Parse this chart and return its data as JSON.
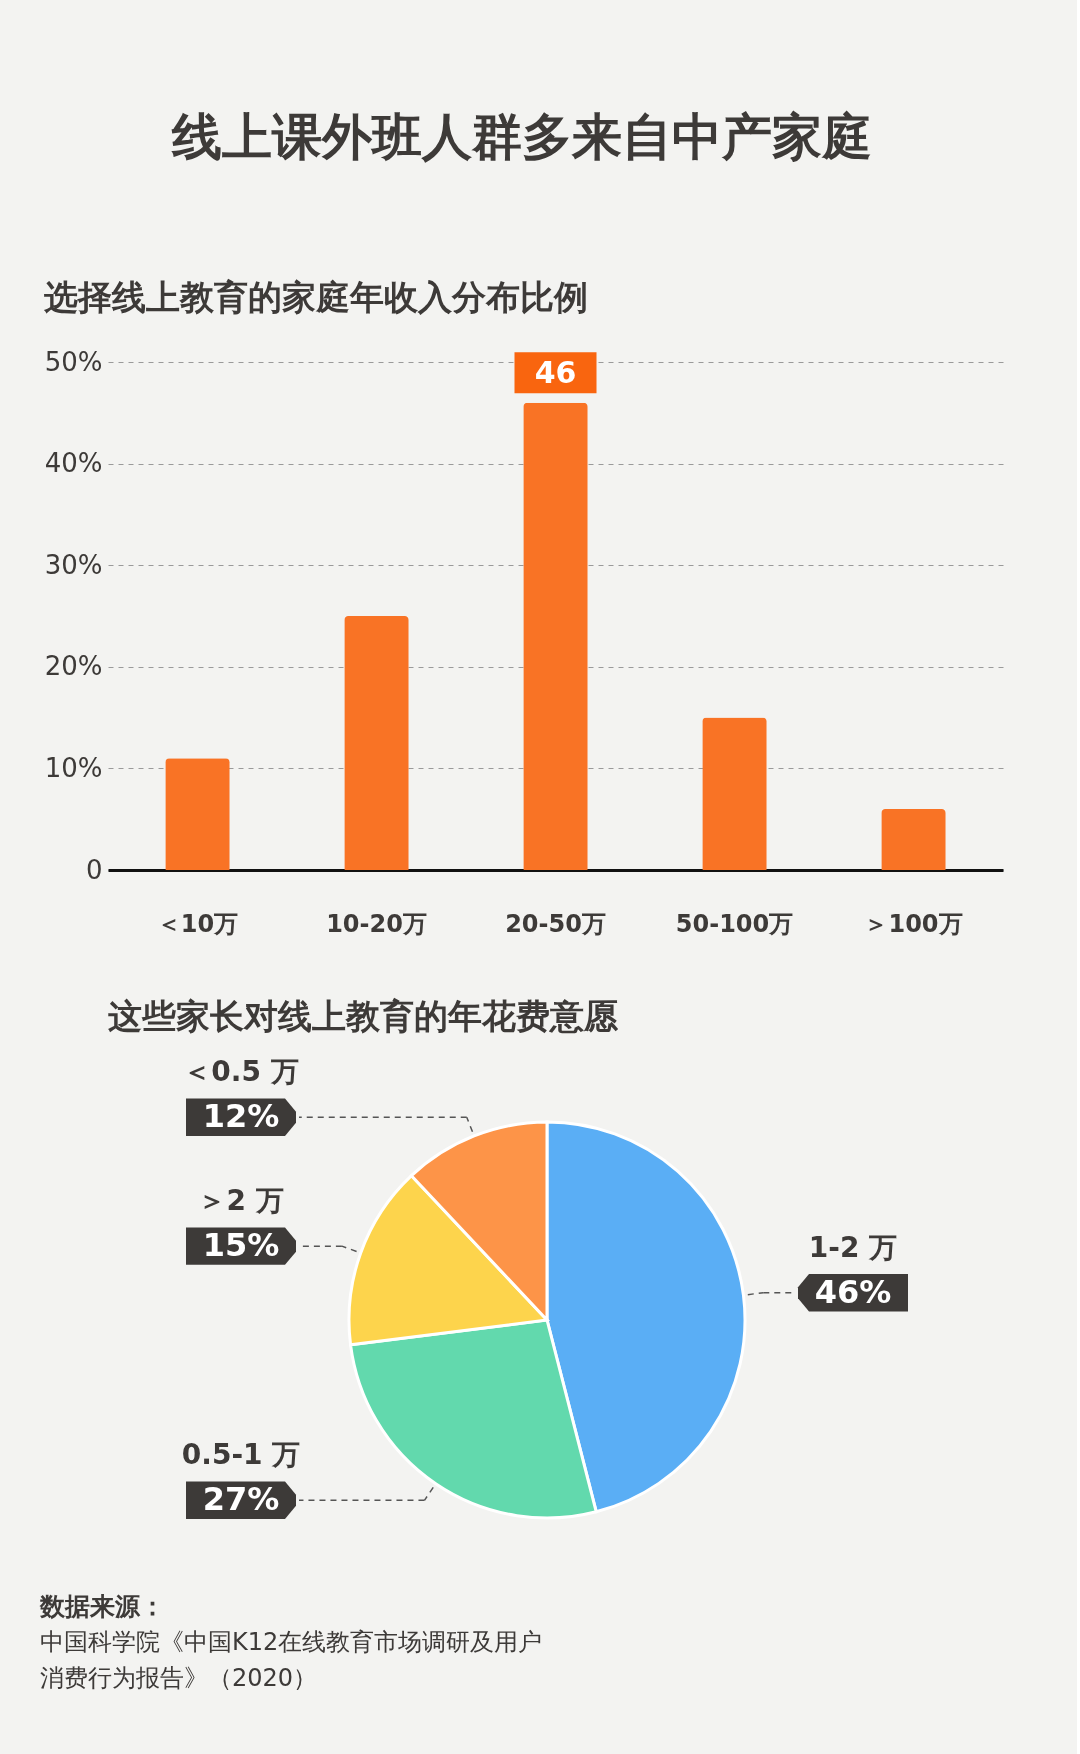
{
  "chart_data": [
    {
      "type": "bar",
      "title": "线上课外班人群多来自中产家庭",
      "subtitle": "选择线上教育的家庭年收入分布比例",
      "categories": [
        "＜10万",
        "10-20万",
        "20-50万",
        "50-100万",
        "＞100万"
      ],
      "values": [
        11,
        25,
        46,
        15,
        6
      ],
      "color": "#f97325",
      "value_labels": [
        null,
        null,
        "46",
        null,
        null
      ],
      "ylim": [
        0,
        50
      ],
      "yticks": [
        0,
        {
          "value": 10,
          "label": "10%"
        },
        {
          "value": 20,
          "label": "20%"
        },
        {
          "value": 30,
          "label": "30%"
        },
        {
          "value": 40,
          "label": "40%"
        },
        {
          "value": 50,
          "label": "50%"
        }
      ],
      "grid": "y"
    },
    {
      "type": "pie",
      "title": "这些家长对线上教育的年花费意愿",
      "categories": [
        "1-2 万",
        "0.5-1 万",
        "＞2 万",
        "＜0.5 万"
      ],
      "values": [
        46,
        27,
        15,
        12
      ],
      "colors": [
        "#5aaef5",
        "#62d9ad",
        "#fdd44c",
        "#fd9448"
      ],
      "value_labels": [
        "46%",
        "27%",
        "15%",
        "12%"
      ],
      "annotations": [
        "数据来源：",
        "中国科学院《中国K12在线教育市场调研及用户消费行为报告》（2020）"
      ]
    }
  ]
}
